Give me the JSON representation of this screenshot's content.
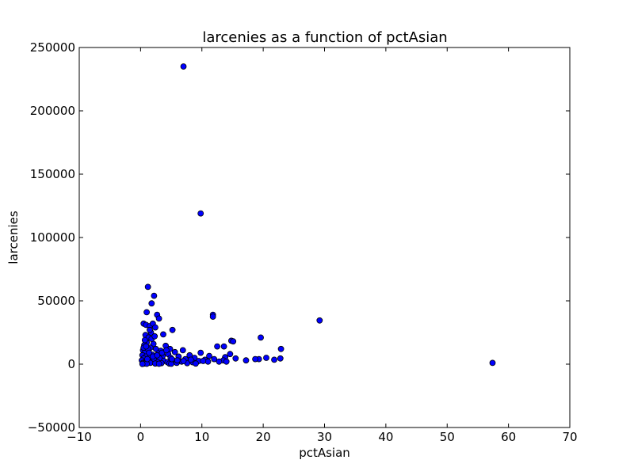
{
  "chart_data": {
    "type": "scatter",
    "title": "larcenies as a function of pctAsian",
    "xlabel": "pctAsian",
    "ylabel": "larcenies",
    "xlim": [
      -10,
      70
    ],
    "ylim": [
      -50000,
      250000
    ],
    "xticks": [
      -10,
      0,
      10,
      20,
      30,
      40,
      50,
      60,
      70
    ],
    "yticks": [
      -50000,
      0,
      50000,
      100000,
      150000,
      200000,
      250000
    ],
    "xtick_labels": [
      "−10",
      "0",
      "10",
      "20",
      "30",
      "40",
      "50",
      "60",
      "70"
    ],
    "ytick_labels": [
      "−50000",
      "0",
      "50000",
      "100000",
      "150000",
      "200000",
      "250000"
    ],
    "grid": false,
    "marker_color": "#0000ff",
    "series": [
      {
        "points": [
          [
            7.0,
            235000
          ],
          [
            9.8,
            119000
          ],
          [
            1.2,
            61000
          ],
          [
            2.2,
            54000
          ],
          [
            1.8,
            48000
          ],
          [
            1.0,
            41000
          ],
          [
            2.7,
            39000
          ],
          [
            3.0,
            36000
          ],
          [
            11.8,
            39000
          ],
          [
            11.8,
            37500
          ],
          [
            29.2,
            34500
          ],
          [
            0.5,
            32000
          ],
          [
            0.9,
            31000
          ],
          [
            1.5,
            30000
          ],
          [
            2.0,
            32000
          ],
          [
            2.4,
            29000
          ],
          [
            5.2,
            27000
          ],
          [
            1.7,
            25000
          ],
          [
            3.7,
            23500
          ],
          [
            0.8,
            23000
          ],
          [
            1.3,
            21000
          ],
          [
            19.6,
            21000
          ],
          [
            14.8,
            18500
          ],
          [
            15.1,
            18000
          ],
          [
            1.0,
            17000
          ],
          [
            2.1,
            16000
          ],
          [
            0.6,
            15000
          ],
          [
            4.1,
            14500
          ],
          [
            12.5,
            14000
          ],
          [
            13.6,
            14000
          ],
          [
            1.6,
            13000
          ],
          [
            2.5,
            12000
          ],
          [
            4.8,
            12000
          ],
          [
            22.9,
            12000
          ],
          [
            0.4,
            11000
          ],
          [
            6.9,
            11000
          ],
          [
            3.3,
            10500
          ],
          [
            1.1,
            10000
          ],
          [
            5.6,
            9500
          ],
          [
            9.8,
            9000
          ],
          [
            0.7,
            9000
          ],
          [
            2.9,
            8500
          ],
          [
            4.5,
            8000
          ],
          [
            14.6,
            8000
          ],
          [
            0.3,
            7000
          ],
          [
            8.0,
            7000
          ],
          [
            1.9,
            7500
          ],
          [
            3.6,
            6500
          ],
          [
            11.2,
            6500
          ],
          [
            0.9,
            6000
          ],
          [
            6.2,
            6000
          ],
          [
            2.6,
            5500
          ],
          [
            13.8,
            5500
          ],
          [
            20.5,
            5000
          ],
          [
            1.4,
            5000
          ],
          [
            4.9,
            5000
          ],
          [
            8.8,
            5000
          ],
          [
            0.5,
            4500
          ],
          [
            3.1,
            4500
          ],
          [
            22.8,
            4500
          ],
          [
            15.5,
            4500
          ],
          [
            12.0,
            4000
          ],
          [
            19.3,
            4000
          ],
          [
            18.7,
            4000
          ],
          [
            7.3,
            4000
          ],
          [
            10.5,
            3500
          ],
          [
            2.2,
            3500
          ],
          [
            17.2,
            3000
          ],
          [
            21.8,
            3500
          ],
          [
            0.2,
            3000
          ],
          [
            5.3,
            3000
          ],
          [
            13.5,
            3000
          ],
          [
            9.5,
            2500
          ],
          [
            1.2,
            2500
          ],
          [
            3.8,
            2500
          ],
          [
            6.7,
            2000
          ],
          [
            11.0,
            2000
          ],
          [
            0.8,
            2000
          ],
          [
            2.8,
            1500
          ],
          [
            4.4,
            1500
          ],
          [
            8.5,
            1500
          ],
          [
            0.4,
            1000
          ],
          [
            1.6,
            1000
          ],
          [
            5.9,
            1000
          ],
          [
            3.4,
            800
          ],
          [
            7.6,
            800
          ],
          [
            0.6,
            500
          ],
          [
            2.4,
            500
          ],
          [
            4.7,
            500
          ],
          [
            9.0,
            500
          ],
          [
            1.0,
            300
          ],
          [
            3.0,
            300
          ],
          [
            5.0,
            300
          ],
          [
            0.3,
            200
          ],
          [
            57.4,
            1000
          ],
          [
            0.5,
            13000
          ],
          [
            1.2,
            12000
          ],
          [
            0.7,
            19000
          ],
          [
            1.8,
            20000
          ],
          [
            2.3,
            22000
          ],
          [
            1.5,
            27000
          ],
          [
            0.9,
            14000
          ],
          [
            1.4,
            9000
          ],
          [
            1.1,
            4000
          ],
          [
            2.0,
            6000
          ],
          [
            2.7,
            7000
          ],
          [
            3.5,
            9000
          ],
          [
            4.2,
            11000
          ],
          [
            5.1,
            4000
          ],
          [
            6.0,
            3000
          ],
          [
            7.0,
            2500
          ],
          [
            8.2,
            3500
          ],
          [
            10.2,
            2500
          ],
          [
            12.8,
            2000
          ],
          [
            14.0,
            2000
          ]
        ]
      }
    ]
  }
}
